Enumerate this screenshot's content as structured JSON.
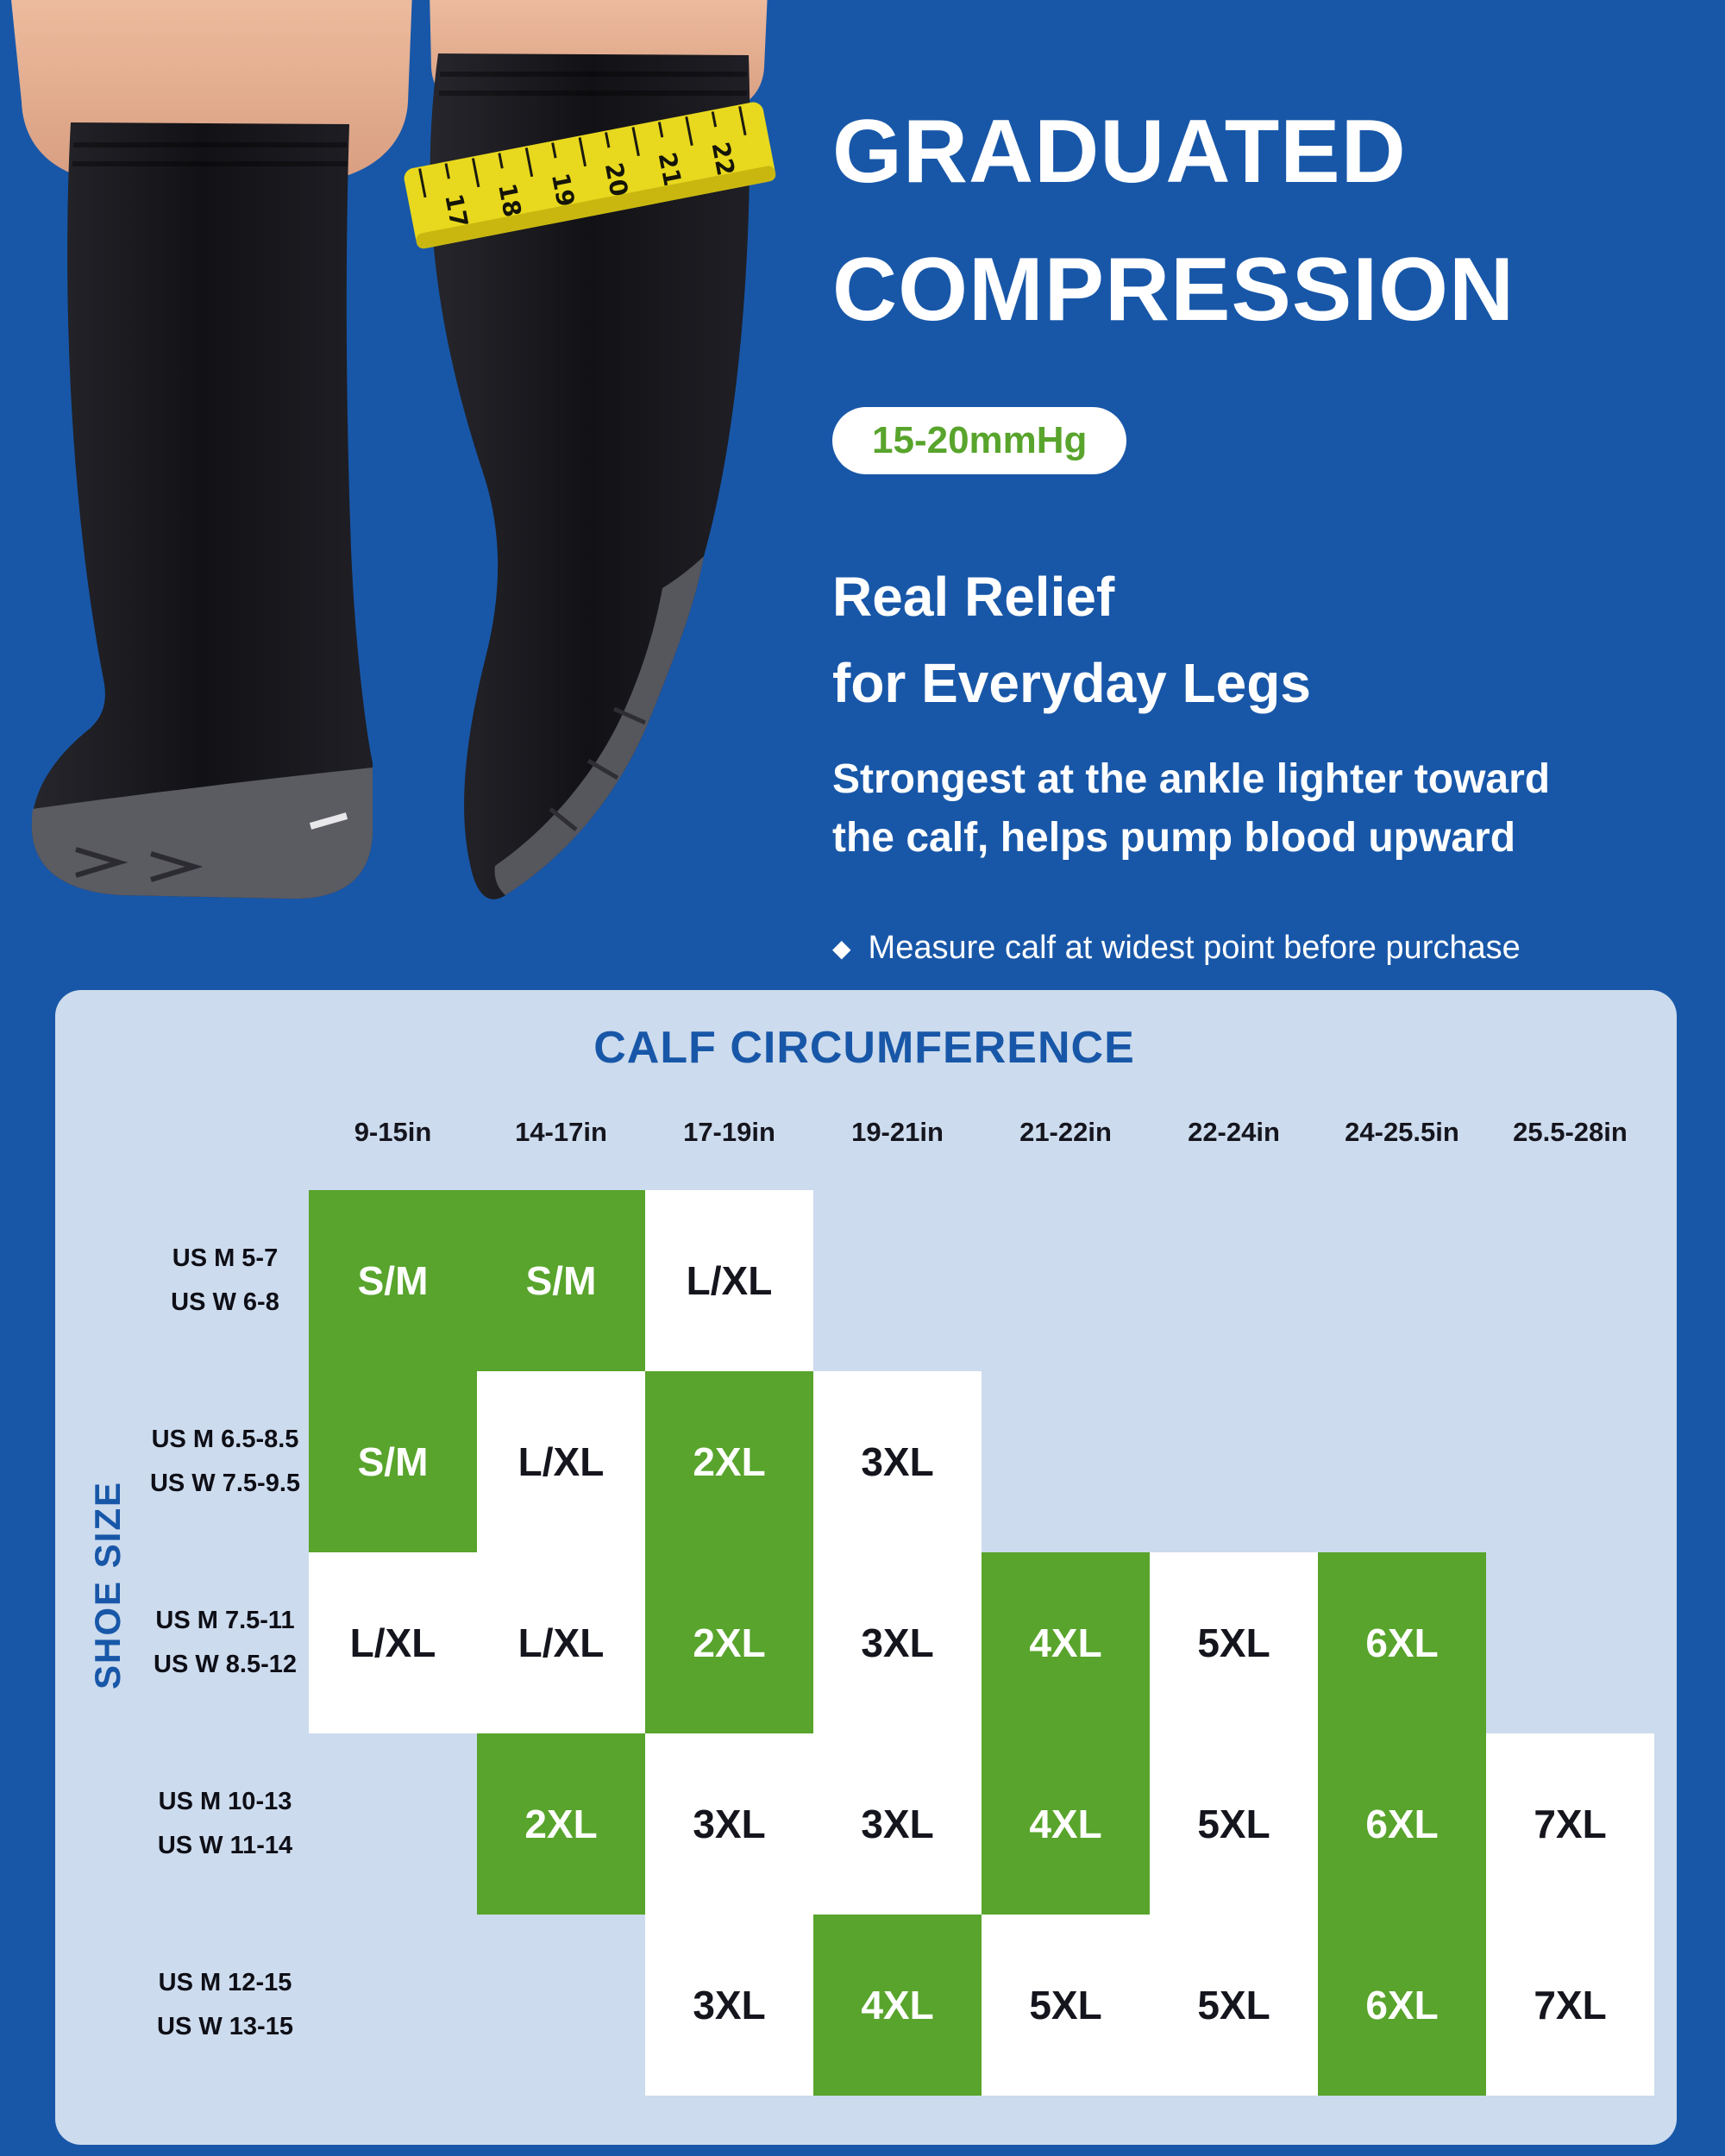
{
  "hero": {
    "title_lines": [
      "GRADUATED",
      "COMPRESSION"
    ],
    "badge": "15-20mmHg",
    "subtitle_lines": [
      "Real Relief",
      "for Everyday Legs"
    ],
    "description_lines": [
      "Strongest at the ankle lighter toward",
      "the calf, helps pump blood upward"
    ],
    "note_bullet": "◆",
    "note": "Measure calf at widest point before purchase"
  },
  "photo": {
    "tape_numbers": [
      "17",
      "18",
      "19",
      "20",
      "21",
      "22"
    ]
  },
  "chart_data": {
    "type": "table",
    "title": "CALF CIRCUMFERENCE",
    "row_axis_label": "SHOE SIZE",
    "columns": [
      "9-15in",
      "14-17in",
      "17-19in",
      "19-21in",
      "21-22in",
      "22-24in",
      "24-25.5in",
      "25.5-28in"
    ],
    "rows": [
      {
        "labels": [
          "US M 5-7",
          "US W 6-8"
        ],
        "cells": [
          {
            "value": "S/M",
            "highlight": true
          },
          {
            "value": "S/M",
            "highlight": true
          },
          {
            "value": "L/XL",
            "highlight": false
          },
          null,
          null,
          null,
          null,
          null
        ]
      },
      {
        "labels": [
          "US M 6.5-8.5",
          "US W 7.5-9.5"
        ],
        "cells": [
          {
            "value": "S/M",
            "highlight": true
          },
          {
            "value": "L/XL",
            "highlight": false
          },
          {
            "value": "2XL",
            "highlight": true
          },
          {
            "value": "3XL",
            "highlight": false
          },
          null,
          null,
          null,
          null
        ]
      },
      {
        "labels": [
          "US M 7.5-11",
          "US W 8.5-12"
        ],
        "cells": [
          {
            "value": "L/XL",
            "highlight": false
          },
          {
            "value": "L/XL",
            "highlight": false
          },
          {
            "value": "2XL",
            "highlight": true
          },
          {
            "value": "3XL",
            "highlight": false
          },
          {
            "value": "4XL",
            "highlight": true
          },
          {
            "value": "5XL",
            "highlight": false
          },
          {
            "value": "6XL",
            "highlight": true
          },
          null
        ]
      },
      {
        "labels": [
          "US M 10-13",
          "US W 11-14"
        ],
        "cells": [
          null,
          {
            "value": "2XL",
            "highlight": true
          },
          {
            "value": "3XL",
            "highlight": false
          },
          {
            "value": "3XL",
            "highlight": false
          },
          {
            "value": "4XL",
            "highlight": true
          },
          {
            "value": "5XL",
            "highlight": false
          },
          {
            "value": "6XL",
            "highlight": true
          },
          {
            "value": "7XL",
            "highlight": false
          }
        ]
      },
      {
        "labels": [
          "US M 12-15",
          "US W 13-15"
        ],
        "cells": [
          null,
          null,
          {
            "value": "3XL",
            "highlight": false
          },
          {
            "value": "4XL",
            "highlight": true
          },
          {
            "value": "5XL",
            "highlight": false
          },
          {
            "value": "5XL",
            "highlight": false
          },
          {
            "value": "6XL",
            "highlight": true
          },
          {
            "value": "7XL",
            "highlight": false
          }
        ]
      }
    ]
  },
  "colors": {
    "background_blue": "#1857a8",
    "accent_green": "#58a42c",
    "card_light_blue": "#ccdbed",
    "cell_white": "#ffffff",
    "dark_text": "#15151e",
    "tape_yellow": "#e8d81e"
  }
}
